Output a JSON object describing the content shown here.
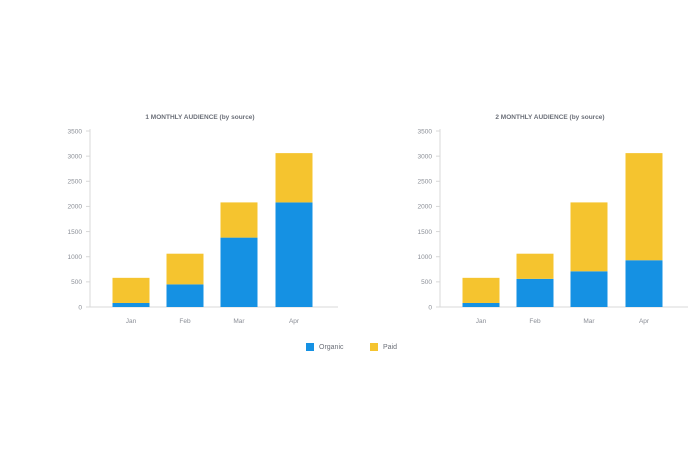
{
  "legend": {
    "items": [
      {
        "label": "Organic",
        "color": "#1591e3"
      },
      {
        "label": "Paid",
        "color": "#f5c42f"
      }
    ]
  },
  "chart_data": [
    {
      "type": "bar",
      "stacked": true,
      "title": "1 MONTHLY AUDIENCE (by source)",
      "categories": [
        "Jan",
        "Feb",
        "Mar",
        "Apr"
      ],
      "yticks": [
        0,
        500,
        1000,
        1500,
        2000,
        2500,
        3000,
        3500
      ],
      "ylim": [
        0,
        3500
      ],
      "grid": false,
      "series": [
        {
          "name": "Organic",
          "color": "#1591e3",
          "values": [
            80,
            450,
            1380,
            2080
          ]
        },
        {
          "name": "Paid",
          "color": "#f5c42f",
          "values": [
            500,
            610,
            700,
            980
          ]
        }
      ]
    },
    {
      "type": "bar",
      "stacked": true,
      "title": "2 MONTHLY AUDIENCE (by source)",
      "categories": [
        "Jan",
        "Feb",
        "Mar",
        "Apr"
      ],
      "yticks": [
        0,
        500,
        1000,
        1500,
        2000,
        2500,
        3000,
        3500
      ],
      "ylim": [
        0,
        3500
      ],
      "grid": false,
      "series": [
        {
          "name": "Organic",
          "color": "#1591e3",
          "values": [
            80,
            560,
            710,
            930
          ]
        },
        {
          "name": "Paid",
          "color": "#f5c42f",
          "values": [
            500,
            500,
            1370,
            2130
          ]
        }
      ]
    }
  ]
}
